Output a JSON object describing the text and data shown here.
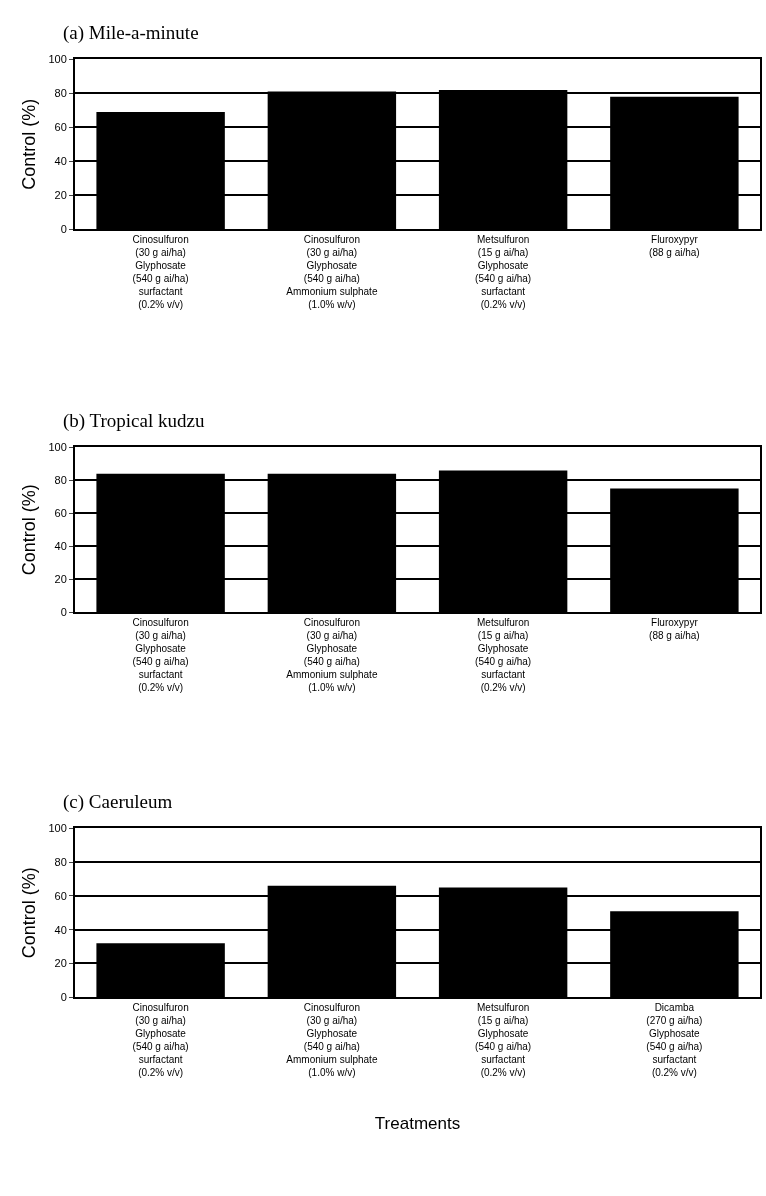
{
  "chart_data": [
    {
      "type": "bar",
      "title": "(a) Mile-a-minute",
      "ylabel": "Control (%)",
      "categories": [
        "Cinosulfuron\n(30 g ai/ha)\nGlyphosate\n(540 g ai/ha)\nsurfactant\n(0.2% v/v)",
        "Cinosulfuron\n(30 g ai/ha)\nGlyphosate\n(540 g ai/ha)\nAmmonium sulphate\n(1.0% w/v)",
        "Metsulfuron\n(15 g ai/ha)\nGlyphosate\n(540 g ai/ha)\nsurfactant\n(0.2% v/v)",
        "Fluroxypyr\n(88 g ai/ha)"
      ],
      "values": [
        69,
        81,
        82,
        78
      ],
      "color": "#000000",
      "ylim": [
        0,
        100
      ],
      "yticks": [
        0,
        20,
        40,
        60,
        80,
        100
      ],
      "grid": "y"
    },
    {
      "type": "bar",
      "title": "(b) Tropical kudzu",
      "ylabel": "Control (%)",
      "categories": [
        "Cinosulfuron\n(30 g ai/ha)\nGlyphosate\n(540 g ai/ha)\nsurfactant\n(0.2% v/v)",
        "Cinosulfuron\n(30 g ai/ha)\nGlyphosate\n(540 g ai/ha)\nAmmonium sulphate\n(1.0% w/v)",
        "Metsulfuron\n(15 g ai/ha)\nGlyphosate\n(540 g ai/ha)\nsurfactant\n(0.2% v/v)",
        "Fluroxypyr\n(88 g ai/ha)"
      ],
      "values": [
        84,
        84,
        86,
        75
      ],
      "color": "#000000",
      "ylim": [
        0,
        100
      ],
      "yticks": [
        0,
        20,
        40,
        60,
        80,
        100
      ],
      "grid": "y"
    },
    {
      "type": "bar",
      "title": "(c) Caeruleum",
      "ylabel": "Control (%)",
      "xlabel": "Treatments",
      "categories": [
        "Cinosulfuron\n(30 g ai/ha)\nGlyphosate\n(540 g ai/ha)\nsurfactant\n(0.2% v/v)",
        "Cinosulfuron\n(30 g ai/ha)\nGlyphosate\n(540 g ai/ha)\nAmmonium sulphate\n(1.0% w/v)",
        "Metsulfuron\n(15 g ai/ha)\nGlyphosate\n(540 g ai/ha)\nsurfactant\n(0.2% v/v)",
        "Dicamba\n(270 g ai/ha)\nGlyphosate\n(540 g ai/ha)\nsurfactant\n(0.2% v/v)"
      ],
      "values": [
        32,
        66,
        65,
        51
      ],
      "color": "#000000",
      "ylim": [
        0,
        100
      ],
      "yticks": [
        0,
        20,
        40,
        60,
        80,
        100
      ],
      "grid": "y"
    }
  ]
}
